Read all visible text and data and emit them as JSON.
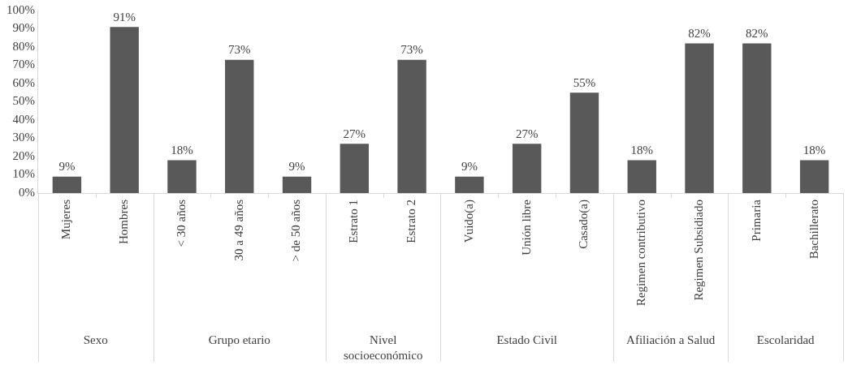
{
  "chart_data": {
    "type": "bar",
    "categories": [
      "Mujeres",
      "Hombres",
      "< 30 años",
      "30 a 49 años",
      "> de 50 años",
      "Estrato 1",
      "Estrato 2",
      "Vuido(a)",
      "Unión libre",
      "Casado(a)",
      "Regimen contributivo",
      "Regimen Subsidiado",
      "Primaria",
      "Bachillerato"
    ],
    "values": [
      9,
      91,
      18,
      73,
      9,
      27,
      73,
      9,
      27,
      55,
      18,
      82,
      82,
      18
    ],
    "value_labels": [
      "9%",
      "91%",
      "18%",
      "73%",
      "9%",
      "27%",
      "73%",
      "9%",
      "27%",
      "55%",
      "18%",
      "82%",
      "82%",
      "18%"
    ],
    "color": "#595959",
    "ylim": [
      0,
      100
    ],
    "yticks": [
      {
        "value": 0,
        "label": "0%"
      },
      {
        "value": 10,
        "label": "10%"
      },
      {
        "value": 20,
        "label": "20%"
      },
      {
        "value": 30,
        "label": "30%"
      },
      {
        "value": 40,
        "label": "40%"
      },
      {
        "value": 50,
        "label": "50%"
      },
      {
        "value": 60,
        "label": "60%"
      },
      {
        "value": 70,
        "label": "70%"
      },
      {
        "value": 80,
        "label": "80%"
      },
      {
        "value": 90,
        "label": "90%"
      },
      {
        "value": 100,
        "label": "100%"
      }
    ],
    "grid": false,
    "legend": false,
    "annotations": [
      "Sexo",
      "Grupo etario",
      "Nivel socioeconómico",
      "Estado Civil",
      "Afiliación a Salud",
      "Escolaridad"
    ]
  }
}
